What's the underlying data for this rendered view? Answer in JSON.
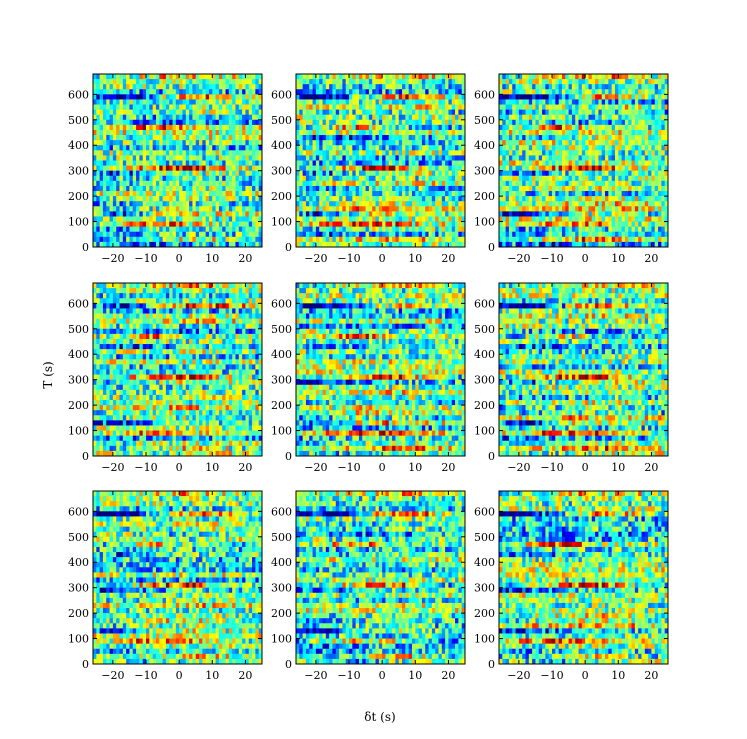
{
  "chart_data": {
    "type": "heatmap",
    "grid": {
      "rows": 3,
      "cols": 3
    },
    "colormap": "jet",
    "xlabel": "δt (s)",
    "ylabel": "T (s)",
    "xlim": [
      -26,
      25
    ],
    "ylim": [
      0,
      680
    ],
    "xticks": [
      -20,
      -10,
      0,
      10,
      20
    ],
    "xtick_labels": [
      "−20",
      "−10",
      "0",
      "10",
      "20"
    ],
    "yticks": [
      0,
      100,
      200,
      300,
      400,
      500,
      600
    ],
    "yticks_labels": [
      "0",
      "100",
      "200",
      "300",
      "400",
      "500",
      "600"
    ],
    "rows_per_panel": 34,
    "cols_per_panel": 51,
    "bands": [
      {
        "T": 665,
        "center": 3,
        "width": 14,
        "amp": 0.85
      },
      {
        "T": 590,
        "center": -18,
        "width": 9,
        "amp": -0.95
      },
      {
        "T": 590,
        "center": 4,
        "width": 10,
        "amp": 0.55
      },
      {
        "T": 500,
        "center": 0,
        "width": 12,
        "amp": -0.7
      },
      {
        "T": 540,
        "center": 8,
        "width": 6,
        "amp": 0.5
      },
      {
        "T": 470,
        "center": -8,
        "width": 6,
        "amp": 0.55
      },
      {
        "T": 430,
        "center": -15,
        "width": 8,
        "amp": -0.35
      },
      {
        "T": 310,
        "center": 0,
        "width": 9,
        "amp": 0.9
      },
      {
        "T": 290,
        "center": -18,
        "width": 8,
        "amp": -0.45
      },
      {
        "T": 240,
        "center": 8,
        "width": 6,
        "amp": 0.45
      },
      {
        "T": 180,
        "center": 3,
        "width": 10,
        "amp": 0.75
      },
      {
        "T": 140,
        "center": 0,
        "width": 12,
        "amp": 0.8
      },
      {
        "T": 130,
        "center": -18,
        "width": 7,
        "amp": -0.6
      },
      {
        "T": 90,
        "center": -5,
        "width": 10,
        "amp": 0.55
      },
      {
        "T": 60,
        "center": -20,
        "width": 6,
        "amp": -0.65
      },
      {
        "T": 30,
        "center": 5,
        "width": 8,
        "amp": 0.45
      },
      {
        "T": 15,
        "center": -10,
        "width": 8,
        "amp": -0.4
      }
    ],
    "panels": [
      {
        "id": "r1c1",
        "seed": 11
      },
      {
        "id": "r1c2",
        "seed": 23
      },
      {
        "id": "r1c3",
        "seed": 37
      },
      {
        "id": "r2c1",
        "seed": 41
      },
      {
        "id": "r2c2",
        "seed": 53
      },
      {
        "id": "r2c3",
        "seed": 67
      },
      {
        "id": "r3c1",
        "seed": 71
      },
      {
        "id": "r3c2",
        "seed": 83
      },
      {
        "id": "r3c3",
        "seed": 97
      }
    ]
  }
}
